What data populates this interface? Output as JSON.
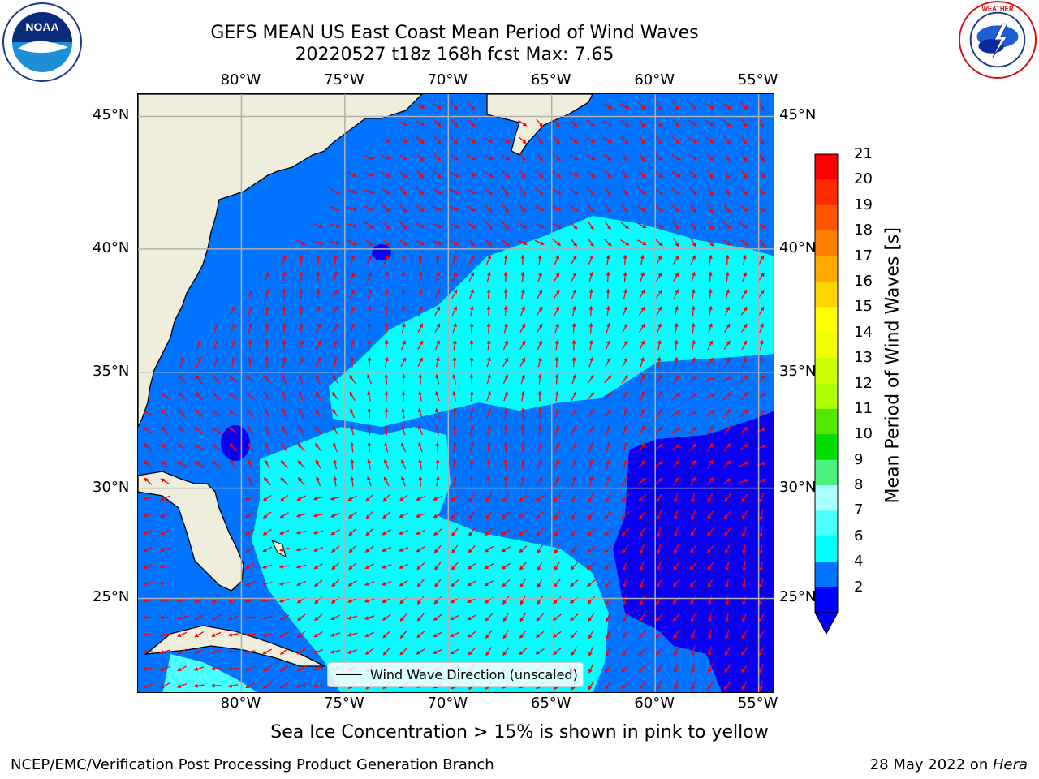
{
  "header": {
    "title_line1": "GEFS MEAN US East Coast Mean Period of Wind Waves",
    "title_line2": "20220527 t18z 168h fcst   Max: 7.65"
  },
  "logos": {
    "left_text": "NOAA",
    "left_ring": "NATIONAL OCEANIC AND ATMOSPHERIC ADMINISTRATION · U.S. DEPARTMENT OF COMMERCE",
    "right_ring": "NATIONAL WEATHER SERVICE"
  },
  "map": {
    "lon_labels": [
      "80°W",
      "75°W",
      "70°W",
      "65°W",
      "60°W",
      "55°W"
    ],
    "lat_labels": [
      "45°N",
      "40°N",
      "35°N",
      "30°N",
      "25°N"
    ],
    "extent": {
      "lon_min": -85,
      "lon_max": -54.2,
      "lat_min": 20.5,
      "lat_max": 45.8
    },
    "colors": {
      "land": "#efeddb",
      "ocean_dark": "#0a00f0",
      "ocean_blue": "#0073ff",
      "ocean_cyan": "#00ffff",
      "ocean_lightcyan": "#4cffff",
      "arrow": "#ff0000",
      "grid": "#b0b0b0"
    },
    "legend_label": "Wind Wave Direction (unscaled)"
  },
  "colorbar": {
    "label": "Mean Period of Wind Waves [s]",
    "ticks": [
      "21",
      "20",
      "19",
      "18",
      "17",
      "16",
      "15",
      "14",
      "13",
      "12",
      "11",
      "10",
      "9",
      "8",
      "7",
      "6",
      "4",
      "2"
    ],
    "colors": [
      "#ff0000",
      "#ff2a00",
      "#ff5500",
      "#ff8000",
      "#ffaa00",
      "#ffd400",
      "#ffff00",
      "#eeff00",
      "#ccff00",
      "#aaff00",
      "#55e600",
      "#00dd00",
      "#4cf07c",
      "#aaffff",
      "#4cffff",
      "#00ffff",
      "#0073ff",
      "#0000ff"
    ]
  },
  "notes": {
    "sea_ice": "Sea Ice Concentration > 15% is shown in pink to yellow"
  },
  "footer": {
    "left": "NCEP/EMC/Verification Post Processing Product Generation Branch",
    "right_prefix": "28 May 2022 on ",
    "right_italic": "Hera"
  }
}
